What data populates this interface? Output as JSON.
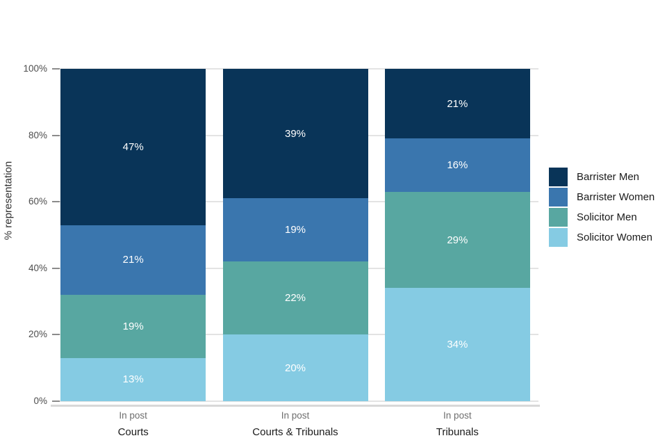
{
  "chart_data": {
    "type": "bar",
    "stacked": true,
    "percent_scale": true,
    "title": "",
    "xlabel": "",
    "ylabel": "% representation",
    "categories": [
      "Courts",
      "Courts & Tribunals",
      "Tribunals"
    ],
    "x_tick_labels": [
      "In post",
      "In post",
      "In post"
    ],
    "series": [
      {
        "name": "Barrister Men",
        "color": "#093458",
        "values": [
          47,
          39,
          21
        ]
      },
      {
        "name": "Barrister Women",
        "color": "#3a76ae",
        "values": [
          21,
          19,
          16
        ]
      },
      {
        "name": "Solicitor Men",
        "color": "#58a7a1",
        "values": [
          19,
          22,
          29
        ]
      },
      {
        "name": "Solicitor Women",
        "color": "#85cbe3",
        "values": [
          13,
          20,
          34
        ]
      }
    ],
    "ylim": [
      0,
      100
    ],
    "y_tick_step": 20,
    "y_tick_labels": [
      "0%",
      "20%",
      "40%",
      "60%",
      "80%",
      "100%"
    ],
    "value_label_suffix": "%",
    "grid": "horizontal",
    "gridline_color": "#e3e3e3",
    "legend_position": "right",
    "legend_labels": [
      "Barrister Men",
      "Barrister Women",
      "Solicitor Men",
      "Solicitor Women"
    ]
  }
}
